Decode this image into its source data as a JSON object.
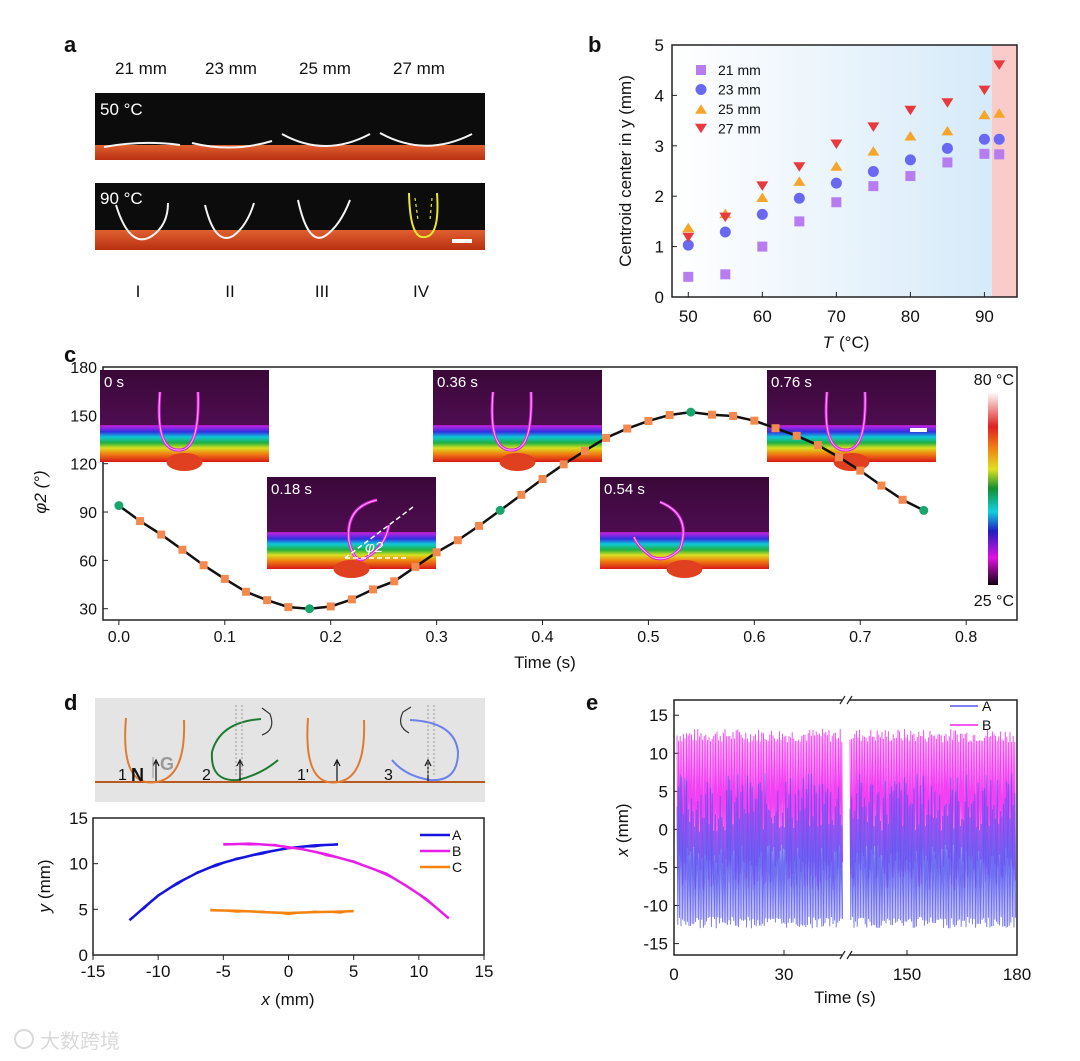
{
  "panels": {
    "a": {
      "label": "a",
      "columns": [
        "21 mm",
        "23 mm",
        "25 mm",
        "27 mm"
      ],
      "temps": [
        "50 °C",
        "90 °C"
      ],
      "roman": [
        "I",
        "II",
        "III",
        "IV"
      ]
    },
    "b": {
      "label": "b"
    },
    "c": {
      "label": "c",
      "insets": [
        "0 s",
        "0.18 s",
        "0.36 s",
        "0.54 s",
        "0.76 s"
      ],
      "colorbar_max": "80 °C",
      "colorbar_min": "25 °C",
      "angle_label": "φ2"
    },
    "d": {
      "label": "d",
      "schematic_labels": [
        "1",
        "N",
        "G",
        "2",
        "1'",
        "3"
      ]
    },
    "e": {
      "label": "e"
    }
  },
  "watermark": "大数跨境",
  "chart_data": [
    {
      "id": "b",
      "type": "scatter",
      "title": "",
      "xlabel_var": "T",
      "xlabel_unit": "(°C)",
      "ylabel": "Centroid center in y (mm)",
      "xlim": [
        47.8,
        94.4
      ],
      "ylim": [
        0,
        5
      ],
      "xticks": [
        "50",
        "60",
        "70",
        "80",
        "90"
      ],
      "yticks": [
        "0",
        "1",
        "2",
        "3",
        "4",
        "5"
      ],
      "shaded_region_start": 91,
      "legend_position": "top-left",
      "x": [
        50,
        55,
        60,
        65,
        70,
        75,
        80,
        85,
        90,
        92
      ],
      "series": [
        {
          "name": "21 mm",
          "marker": "square",
          "color": "#b77cf0",
          "values": [
            0.4,
            0.45,
            1.0,
            1.5,
            1.88,
            2.2,
            2.4,
            2.67,
            2.84,
            2.83
          ]
        },
        {
          "name": "23 mm",
          "marker": "circle",
          "color": "#6868f2",
          "values": [
            1.03,
            1.29,
            1.64,
            1.96,
            2.26,
            2.49,
            2.72,
            2.95,
            3.13,
            3.13
          ]
        },
        {
          "name": "25 mm",
          "marker": "triangle-up",
          "color": "#f5a52a",
          "values": [
            1.38,
            1.66,
            1.98,
            2.3,
            2.6,
            2.9,
            3.2,
            3.3,
            3.62,
            3.65
          ]
        },
        {
          "name": "27 mm",
          "marker": "triangle-down",
          "color": "#e8393f",
          "values": [
            1.18,
            1.58,
            2.2,
            2.58,
            3.03,
            3.37,
            3.7,
            3.85,
            4.1,
            4.6
          ]
        }
      ]
    },
    {
      "id": "c",
      "type": "line",
      "xlabel": "Time (s)",
      "ylabel": "φ2 (°)",
      "xlim": [
        -0.015,
        0.848
      ],
      "ylim": [
        23,
        180
      ],
      "xticks": [
        "0.0",
        "0.1",
        "0.2",
        "0.3",
        "0.4",
        "0.5",
        "0.6",
        "0.7",
        "0.8"
      ],
      "yticks": [
        "30",
        "60",
        "90",
        "120",
        "150",
        "180"
      ],
      "x": [
        0,
        0.02,
        0.04,
        0.06,
        0.08,
        0.1,
        0.12,
        0.14,
        0.16,
        0.18,
        0.2,
        0.22,
        0.24,
        0.26,
        0.28,
        0.3,
        0.32,
        0.34,
        0.36,
        0.38,
        0.4,
        0.42,
        0.44,
        0.46,
        0.48,
        0.5,
        0.52,
        0.54,
        0.56,
        0.58,
        0.6,
        0.62,
        0.64,
        0.66,
        0.68,
        0.7,
        0.72,
        0.74,
        0.76
      ],
      "values": [
        94,
        84.4,
        76,
        66.6,
        57,
        48.5,
        40.5,
        35.3,
        31,
        30,
        31.4,
        35.8,
        42,
        47,
        56,
        65,
        72.5,
        81.4,
        91,
        100.7,
        110.5,
        119.6,
        128,
        136,
        141.8,
        146.5,
        150.2,
        152,
        150.4,
        149.6,
        146.7,
        142,
        137.3,
        131.5,
        124,
        115.7,
        106.4,
        97.6,
        91
      ],
      "highlight_x": [
        0,
        0.18,
        0.36,
        0.54,
        0.76
      ],
      "colors": {
        "line": "#111111",
        "point": "#f28a50",
        "highlight": "#1aa56e"
      }
    },
    {
      "id": "d",
      "type": "line",
      "xlabel_var": "x",
      "xlabel_unit": "(mm)",
      "ylabel_var": "y",
      "ylabel_unit": "(mm)",
      "xlim": [
        -15,
        15
      ],
      "ylim": [
        0,
        15
      ],
      "xticks": [
        "-15",
        "-10",
        "-5",
        "0",
        "5",
        "10",
        "15"
      ],
      "yticks": [
        "0",
        "5",
        "10",
        "15"
      ],
      "legend_position": "top-right",
      "series": [
        {
          "name": "A",
          "color": "#1515e0",
          "x": [
            -12.2,
            -11,
            -10,
            -8.5,
            -7,
            -5.5,
            -4,
            -2,
            0,
            2,
            3.8
          ],
          "y": [
            3.8,
            5.3,
            6.5,
            7.9,
            9.0,
            9.9,
            10.5,
            11.2,
            11.7,
            12.0,
            12.1
          ]
        },
        {
          "name": "B",
          "color": "#e81ee8",
          "x": [
            -5,
            -3,
            -1,
            0,
            1,
            3,
            5,
            7.5,
            9,
            10.5,
            12.3
          ],
          "y": [
            12.1,
            12.2,
            12.0,
            11.8,
            11.6,
            11.0,
            10.2,
            8.9,
            7.6,
            6.2,
            4.0
          ]
        },
        {
          "name": "C",
          "color": "#f5820f",
          "x": [
            -6,
            -4,
            -2,
            0,
            2,
            4,
            5
          ],
          "y": [
            4.9,
            4.85,
            4.7,
            4.6,
            4.7,
            4.75,
            4.8
          ]
        }
      ]
    },
    {
      "id": "e",
      "type": "line",
      "xlabel": "Time (s)",
      "ylabel_var": "x",
      "ylabel_unit": "(mm)",
      "ylim": [
        -16.5,
        17
      ],
      "xticks": [
        "0",
        "30",
        "150",
        "180"
      ],
      "yticks": [
        "-15",
        "-10",
        "-5",
        "0",
        "5",
        "10",
        "15"
      ],
      "axis_break": "between 45 s and 135 s",
      "legend_position": "top-right",
      "series": [
        {
          "name": "A",
          "color": "#5656f0",
          "min": -13,
          "max": 8.5,
          "typical_low": -11.5,
          "typical_high": 2
        },
        {
          "name": "B",
          "color": "#f020f0",
          "min": -8,
          "max": 13.5,
          "typical_low": -2,
          "typical_high": 12
        }
      ]
    }
  ]
}
